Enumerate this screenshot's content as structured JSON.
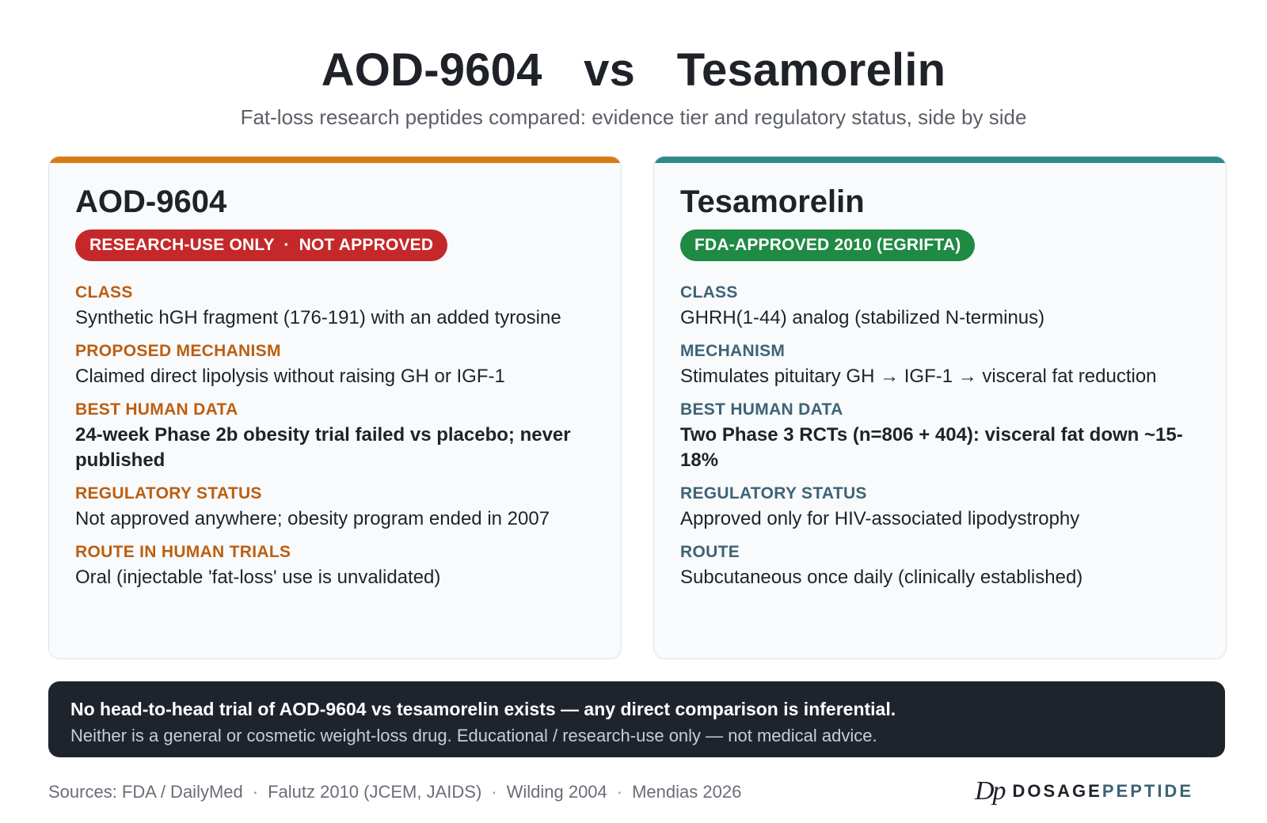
{
  "header": {
    "title": "AOD-9604  vs  Tesamorelin",
    "subtitle": "Fat-loss research peptides compared: evidence tier and regulatory status, side by side"
  },
  "colors": {
    "left_accent": "#d97b12",
    "right_accent": "#2e8a8c",
    "red_badge": "#c5282a",
    "green_badge": "#1f8a44",
    "note_background": "#1f242c"
  },
  "cards": [
    {
      "name": "AOD-9604",
      "badge": "RESEARCH-USE ONLY  ·  NOT APPROVED",
      "badge_color": "red",
      "fields": [
        {
          "label": "CLASS",
          "value": "Synthetic hGH fragment (176-191) with an added tyrosine"
        },
        {
          "label": "PROPOSED MECHANISM",
          "value": "Claimed direct lipolysis without raising GH or IGF-1"
        },
        {
          "label": "BEST HUMAN DATA",
          "value": "24-week Phase 2b obesity trial failed vs placebo; never published"
        },
        {
          "label": "REGULATORY STATUS",
          "value": "Not approved anywhere; obesity program ended in 2007"
        },
        {
          "label": "ROUTE IN HUMAN TRIALS",
          "value": "Oral (injectable 'fat-loss' use is unvalidated)"
        }
      ]
    },
    {
      "name": "Tesamorelin",
      "badge": "FDA-APPROVED 2010 (EGRIFTA)",
      "badge_color": "green",
      "fields": [
        {
          "label": "CLASS",
          "value": "GHRH(1-44) analog (stabilized N-terminus)"
        },
        {
          "label": "MECHANISM",
          "value": "Stimulates pituitary GH → IGF-1 → visceral fat reduction"
        },
        {
          "label": "BEST HUMAN DATA",
          "value": "Two Phase 3 RCTs (n=806 + 404): visceral fat down ~15-18%"
        },
        {
          "label": "REGULATORY STATUS",
          "value": "Approved only for HIV-associated lipodystrophy"
        },
        {
          "label": "ROUTE",
          "value": "Subcutaneous once daily (clinically established)"
        }
      ]
    }
  ],
  "note": {
    "headline": "No head-to-head trial of AOD-9604 vs tesamorelin exists — any direct comparison is inferential.",
    "sub": "Neither is a general or cosmetic weight-loss drug. Educational / research-use only — not medical advice."
  },
  "footer": {
    "sources": [
      "Sources: FDA / DailyMed",
      "Falutz 2010 (JCEM, JAIDS)",
      "Wilding 2004",
      "Mendias 2026"
    ],
    "separator": "·",
    "brand_mark": "Dp",
    "brand_part1": "DOSAGE",
    "brand_part2": "PEPTIDE"
  }
}
